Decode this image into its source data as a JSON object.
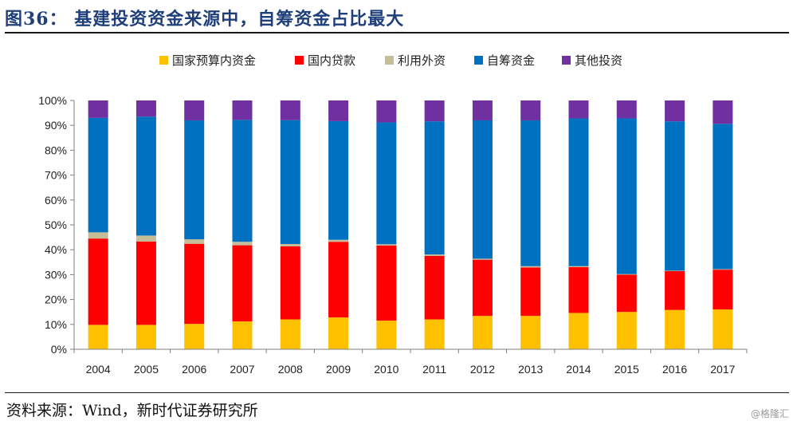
{
  "figure": {
    "title": "图36： 基建投资资金来源中，自筹资金占比最大",
    "source": "资料来源：Wind，新时代证券研究所",
    "watermark": "@格隆汇"
  },
  "chart_data": {
    "type": "bar",
    "stacked": true,
    "percent": true,
    "categories": [
      "2004",
      "2005",
      "2006",
      "2007",
      "2008",
      "2009",
      "2010",
      "2011",
      "2012",
      "2013",
      "2014",
      "2015",
      "2016",
      "2017"
    ],
    "ylim": [
      0,
      100
    ],
    "yticks": [
      "0%",
      "10%",
      "20%",
      "30%",
      "40%",
      "50%",
      "60%",
      "70%",
      "80%",
      "90%",
      "100%"
    ],
    "legend_position": "top",
    "grid": false,
    "series": [
      {
        "name": "国家预算内资金",
        "color": "#ffc000",
        "values": [
          9.8,
          9.8,
          10.2,
          11.2,
          12.0,
          12.8,
          11.5,
          12.0,
          13.4,
          13.4,
          14.6,
          15.0,
          15.8,
          16.0
        ]
      },
      {
        "name": "国内贷款",
        "color": "#ff0000",
        "values": [
          34.7,
          33.5,
          32.2,
          30.6,
          29.4,
          30.4,
          30.2,
          25.5,
          22.6,
          19.5,
          18.4,
          15.0,
          15.6,
          16.0
        ]
      },
      {
        "name": "利用外资",
        "color": "#c4bd97",
        "values": [
          2.5,
          2.4,
          1.8,
          1.4,
          0.9,
          0.8,
          0.5,
          0.6,
          0.4,
          0.5,
          0.4,
          0.2,
          0.2,
          0.2
        ]
      },
      {
        "name": "自筹资金",
        "color": "#0070c0",
        "values": [
          46.0,
          47.8,
          47.8,
          49.0,
          49.8,
          47.7,
          49.0,
          53.5,
          55.6,
          58.6,
          59.4,
          62.6,
          60.0,
          58.4
        ]
      },
      {
        "name": "其他投资",
        "color": "#7030a0",
        "values": [
          7.0,
          6.5,
          8.0,
          7.8,
          7.9,
          8.3,
          8.8,
          8.4,
          8.0,
          8.0,
          7.2,
          7.2,
          8.4,
          9.4
        ]
      }
    ]
  }
}
